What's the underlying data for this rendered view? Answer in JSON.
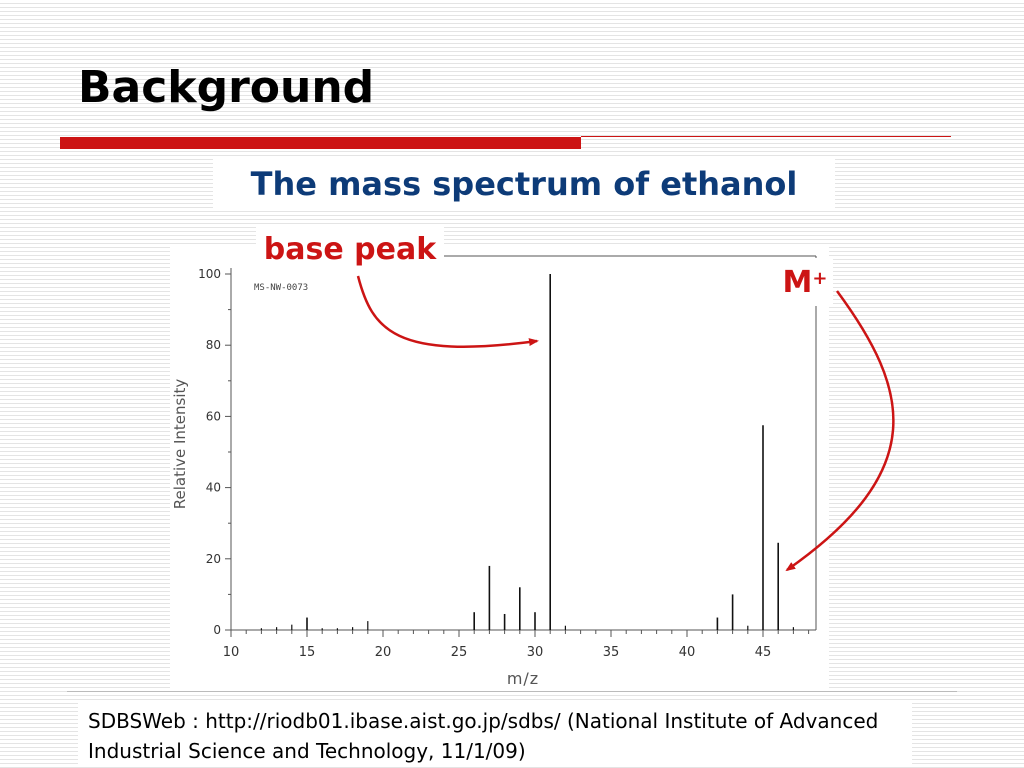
{
  "slide": {
    "title": "Background",
    "subtitle": "The mass spectrum of ethanol",
    "citation": "SDBSWeb : http://riodb01.ibase.aist.go.jp/sdbs/ (National Institute of Advanced Industrial Science and Technology, 11/1/09)"
  },
  "annotations": {
    "base_peak": "base peak",
    "molecular_ion": "M",
    "molecular_ion_charge": "+"
  },
  "colors": {
    "title_rule": "#cc1414",
    "subtitle_text": "#0d3b78",
    "annotation": "#cc1414"
  },
  "chart_data": {
    "type": "bar",
    "spectrum_code": "MS-NW-0073",
    "xlabel": "m/z",
    "ylabel": "Relative Intensity",
    "xlim": [
      10,
      48.5
    ],
    "ylim": [
      0,
      100
    ],
    "xticks": [
      10,
      15,
      20,
      25,
      30,
      35,
      40,
      45
    ],
    "yticks": [
      0,
      20,
      40,
      60,
      80,
      100
    ],
    "points": [
      {
        "x": 12,
        "y": 0.5
      },
      {
        "x": 13,
        "y": 0.8
      },
      {
        "x": 14,
        "y": 1.5
      },
      {
        "x": 15,
        "y": 3.5
      },
      {
        "x": 16,
        "y": 0.5
      },
      {
        "x": 17,
        "y": 0.5
      },
      {
        "x": 18,
        "y": 0.8
      },
      {
        "x": 19,
        "y": 2.5
      },
      {
        "x": 26,
        "y": 5
      },
      {
        "x": 27,
        "y": 18
      },
      {
        "x": 28,
        "y": 4.5
      },
      {
        "x": 29,
        "y": 12
      },
      {
        "x": 30,
        "y": 5
      },
      {
        "x": 31,
        "y": 100
      },
      {
        "x": 32,
        "y": 1.2
      },
      {
        "x": 42,
        "y": 3.5
      },
      {
        "x": 43,
        "y": 10
      },
      {
        "x": 44,
        "y": 1.2
      },
      {
        "x": 45,
        "y": 57.5
      },
      {
        "x": 46,
        "y": 24.5
      },
      {
        "x": 47,
        "y": 0.8
      }
    ]
  }
}
